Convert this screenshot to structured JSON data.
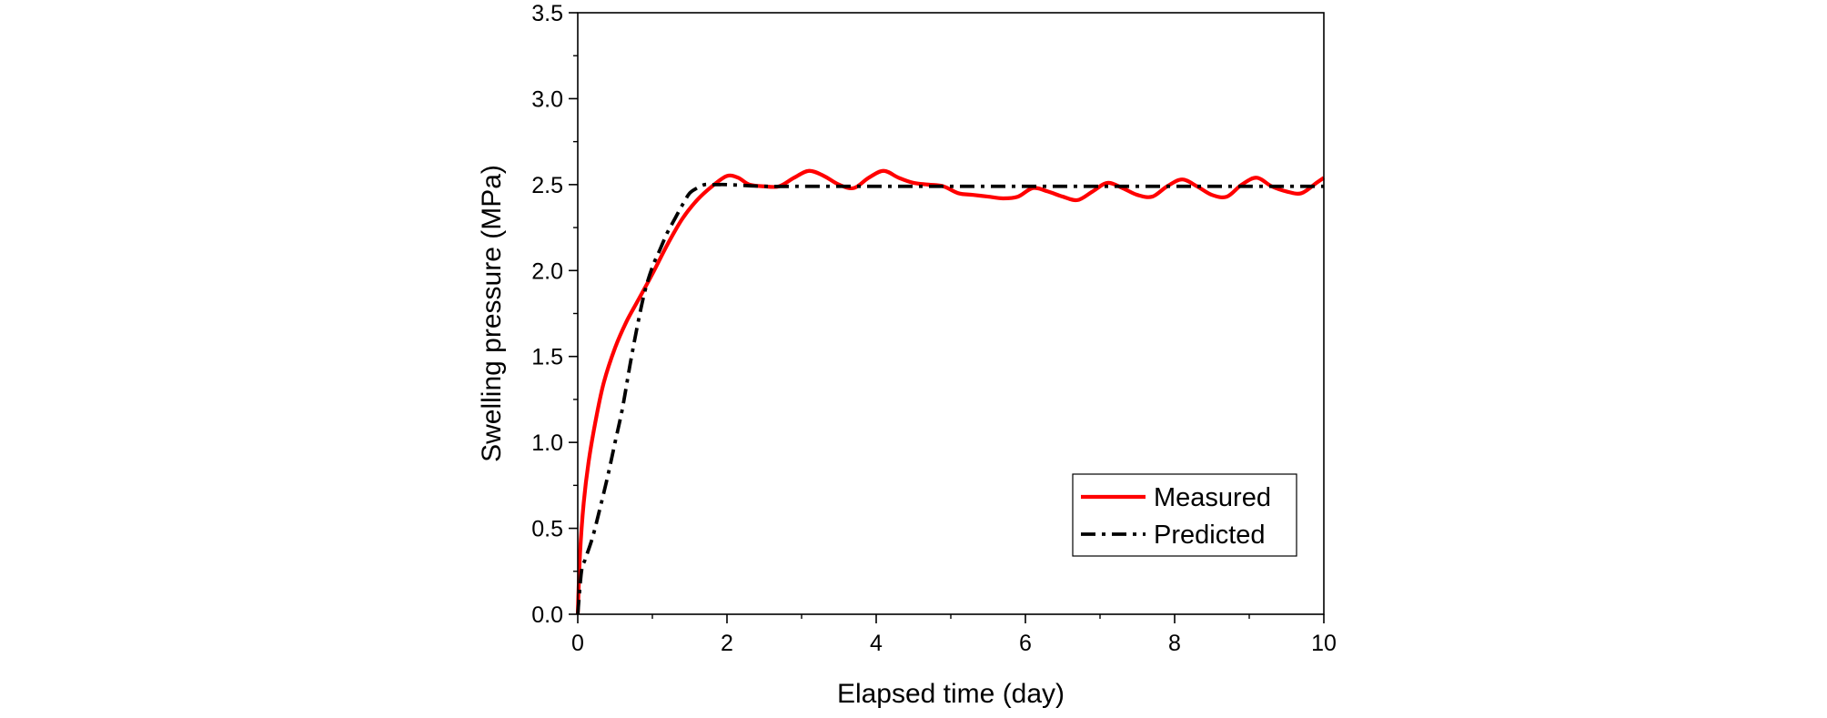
{
  "chart_data": {
    "type": "line",
    "xlabel": "Elapsed time (day)",
    "ylabel": "Swelling pressure (MPa)",
    "xlim": [
      0,
      10
    ],
    "ylim": [
      0,
      3.5
    ],
    "x_ticks": [
      0,
      2,
      4,
      6,
      8,
      10
    ],
    "x_tick_labels": [
      "0",
      "2",
      "4",
      "6",
      "8",
      "10"
    ],
    "y_ticks": [
      0.0,
      0.5,
      1.0,
      1.5,
      2.0,
      2.5,
      3.0,
      3.5
    ],
    "y_tick_labels": [
      "0.0",
      "0.5",
      "1.0",
      "1.5",
      "2.0",
      "2.5",
      "3.0",
      "3.5"
    ],
    "grid": false,
    "legend_position": "bottom-right",
    "series": [
      {
        "name": "Measured",
        "color": "#ff0000",
        "style": "solid",
        "x": [
          0,
          0.03,
          0.08,
          0.15,
          0.25,
          0.35,
          0.5,
          0.65,
          0.8,
          1.0,
          1.2,
          1.4,
          1.6,
          1.8,
          2.0,
          2.15,
          2.3,
          2.5,
          2.7,
          2.9,
          3.1,
          3.3,
          3.5,
          3.7,
          3.9,
          4.1,
          4.3,
          4.5,
          4.7,
          4.9,
          5.1,
          5.3,
          5.5,
          5.7,
          5.9,
          6.1,
          6.3,
          6.5,
          6.7,
          6.9,
          7.1,
          7.3,
          7.5,
          7.7,
          7.9,
          8.1,
          8.3,
          8.5,
          8.7,
          8.9,
          9.1,
          9.3,
          9.5,
          9.7,
          9.9,
          10.0
        ],
        "y": [
          0.0,
          0.35,
          0.65,
          0.9,
          1.15,
          1.35,
          1.55,
          1.7,
          1.82,
          1.98,
          2.15,
          2.3,
          2.41,
          2.49,
          2.55,
          2.54,
          2.5,
          2.49,
          2.49,
          2.54,
          2.58,
          2.55,
          2.5,
          2.48,
          2.54,
          2.58,
          2.54,
          2.51,
          2.5,
          2.49,
          2.45,
          2.44,
          2.43,
          2.42,
          2.43,
          2.48,
          2.46,
          2.43,
          2.41,
          2.46,
          2.51,
          2.48,
          2.44,
          2.43,
          2.49,
          2.53,
          2.49,
          2.44,
          2.43,
          2.5,
          2.54,
          2.49,
          2.46,
          2.45,
          2.51,
          2.54
        ]
      },
      {
        "name": "Predicted",
        "color": "#000000",
        "style": "dashdot",
        "x": [
          0,
          0.05,
          0.1,
          0.2,
          0.3,
          0.4,
          0.5,
          0.6,
          0.7,
          0.8,
          0.9,
          1.0,
          1.1,
          1.2,
          1.3,
          1.4,
          1.5,
          1.6,
          1.7,
          1.8,
          1.9,
          2.0,
          2.5,
          3.0,
          4.0,
          5.0,
          6.0,
          7.0,
          8.0,
          9.0,
          10.0
        ],
        "y": [
          0.0,
          0.25,
          0.32,
          0.45,
          0.62,
          0.8,
          1.0,
          1.2,
          1.45,
          1.68,
          1.88,
          2.02,
          2.12,
          2.22,
          2.3,
          2.38,
          2.45,
          2.48,
          2.5,
          2.5,
          2.5,
          2.5,
          2.49,
          2.49,
          2.49,
          2.49,
          2.49,
          2.49,
          2.49,
          2.49,
          2.49
        ]
      }
    ]
  }
}
